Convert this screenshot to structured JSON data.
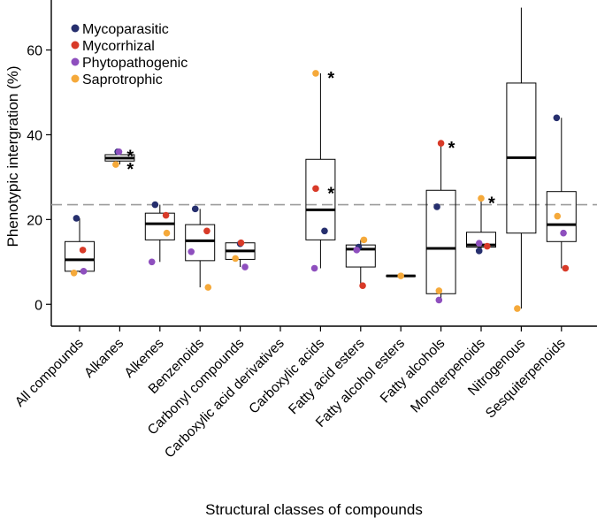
{
  "chart_data": {
    "type": "box",
    "ylabel": "Phenotypic intergration (%)",
    "xlabel": "Structural classes of compounds",
    "ylim": [
      -4,
      74
    ],
    "yticks": [
      0,
      20,
      40,
      60
    ],
    "reference_line": 23.5,
    "categories": [
      "All compounds",
      "Alkanes",
      "Alkenes",
      "Benzenoids",
      "Carbonyl compounds",
      "Carboxylic acid derivatives",
      "Carboxylic acids",
      "Fatty acid esters",
      "Fatty alcohol esters",
      "Fatty alcohols",
      "Monoterpenoids",
      "Nitrogenous",
      "Sesquiterpenoids"
    ],
    "boxes": [
      {
        "whisker_low": 7.5,
        "q1": 7.8,
        "median": 10.5,
        "q3": 14.8,
        "whisker_high": 20.3
      },
      {
        "whisker_low": 33.0,
        "q1": 33.8,
        "median": 34.5,
        "q3": 35.3,
        "whisker_high": 36.0
      },
      {
        "whisker_low": 10.0,
        "q1": 15.2,
        "median": 19.0,
        "q3": 21.5,
        "whisker_high": 23.5
      },
      {
        "whisker_low": 4.0,
        "q1": 10.3,
        "median": 15.0,
        "q3": 18.8,
        "whisker_high": 22.5
      },
      {
        "whisker_low": 8.8,
        "q1": 10.6,
        "median": 12.6,
        "q3": 14.5,
        "whisker_high": 14.5
      },
      null,
      {
        "whisker_low": 8.5,
        "q1": 15.2,
        "median": 22.3,
        "q3": 34.2,
        "whisker_high": 54.5
      },
      {
        "whisker_low": 4.4,
        "q1": 8.8,
        "median": 13.0,
        "q3": 14.0,
        "whisker_high": 15.2
      },
      {
        "whisker_low": 6.7,
        "q1": 6.7,
        "median": 6.7,
        "q3": 6.7,
        "whisker_high": 6.7
      },
      {
        "whisker_low": 1.0,
        "q1": 2.5,
        "median": 13.2,
        "q3": 26.9,
        "whisker_high": 38.0
      },
      {
        "whisker_low": 12.6,
        "q1": 13.5,
        "median": 14.0,
        "q3": 17.0,
        "whisker_high": 25.0
      },
      {
        "whisker_low": -1.0,
        "q1": 16.8,
        "median": 34.6,
        "q3": 52.2,
        "whisker_high": 70.0
      },
      {
        "whisker_low": 8.5,
        "q1": 14.8,
        "median": 18.8,
        "q3": 26.6,
        "whisker_high": 44.0
      }
    ],
    "series": [
      {
        "name": "Mycoparasitic",
        "color": "#262f6e",
        "points": [
          [
            0,
            20.3,
            -0.08
          ],
          [
            1,
            36.0,
            -0.05
          ],
          [
            2,
            23.5,
            -0.12
          ],
          [
            3,
            22.5,
            -0.12
          ],
          [
            4,
            14.3,
            0
          ],
          [
            6,
            17.3,
            0.1
          ],
          [
            7,
            13.5,
            -0.05
          ],
          [
            9,
            23.0,
            -0.1
          ],
          [
            10,
            12.6,
            -0.05
          ],
          [
            12,
            44.0,
            -0.12
          ]
        ]
      },
      {
        "name": "Mycorrhizal",
        "color": "#d83a28",
        "points": [
          [
            0,
            12.8,
            0.08
          ],
          [
            2,
            21.0,
            0.15
          ],
          [
            3,
            17.3,
            0.17
          ],
          [
            4,
            14.5,
            0.02
          ],
          [
            6,
            27.3,
            -0.12
          ],
          [
            7,
            4.4,
            0.05
          ],
          [
            9,
            38.0,
            0
          ],
          [
            10,
            13.7,
            0.15
          ],
          [
            12,
            8.5,
            0.1
          ]
        ]
      },
      {
        "name": "Phytopathogenic",
        "color": "#8e4fbe",
        "points": [
          [
            0,
            7.8,
            0.1
          ],
          [
            1,
            36.0,
            -0.02
          ],
          [
            2,
            10.0,
            -0.2
          ],
          [
            3,
            12.4,
            -0.22
          ],
          [
            4,
            8.8,
            0.12
          ],
          [
            6,
            8.5,
            -0.15
          ],
          [
            7,
            12.8,
            -0.1
          ],
          [
            9,
            1.0,
            -0.05
          ],
          [
            10,
            14.4,
            -0.05
          ],
          [
            12,
            16.8,
            0.05
          ]
        ]
      },
      {
        "name": "Saprotrophic",
        "color": "#f5a93a",
        "points": [
          [
            0,
            7.4,
            -0.14
          ],
          [
            1,
            33.0,
            -0.1
          ],
          [
            2,
            16.8,
            0.17
          ],
          [
            3,
            4.0,
            0.2
          ],
          [
            4,
            10.8,
            -0.12
          ],
          [
            6,
            54.5,
            -0.12
          ],
          [
            7,
            15.2,
            0.08
          ],
          [
            8,
            6.7,
            0
          ],
          [
            9,
            3.2,
            -0.05
          ],
          [
            10,
            25.0,
            0
          ],
          [
            11,
            -1.0,
            -0.1
          ],
          [
            12,
            20.8,
            -0.1
          ]
        ]
      }
    ],
    "annotations": [
      {
        "category": 1,
        "y": 36.0,
        "text": "*"
      },
      {
        "category": 1,
        "y": 33.0,
        "text": "*"
      },
      {
        "category": 6,
        "y": 54.5,
        "text": "*"
      },
      {
        "category": 6,
        "y": 27.3,
        "text": "*"
      },
      {
        "category": 9,
        "y": 38.0,
        "text": "*"
      },
      {
        "category": 10,
        "y": 25.0,
        "text": "*"
      }
    ],
    "legend": {
      "position": "top-left"
    }
  }
}
